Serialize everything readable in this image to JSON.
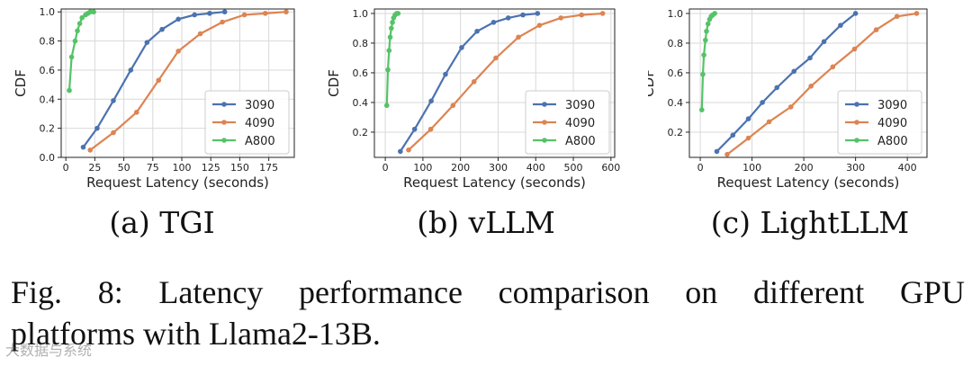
{
  "figure": {
    "caption_line1": "Fig. 8: Latency performance comparison on different GPU",
    "caption_line2": "platforms with Llama2-13B.",
    "watermark": "大数据与系统"
  },
  "colors": {
    "3090": "#4c72b0",
    "4090": "#dd8452",
    "A800": "#55c367"
  },
  "chart_data": [
    {
      "type": "line",
      "subcaption": "(a) TGI",
      "xlabel": "Request Latency (seconds)",
      "ylabel": "CDF",
      "xlim": [
        -4,
        197
      ],
      "ylim": [
        0.0,
        1.02
      ],
      "xticks": [
        0,
        25,
        50,
        75,
        100,
        125,
        150,
        175
      ],
      "yticks": [
        0.0,
        0.2,
        0.4,
        0.6,
        0.8,
        1.0
      ],
      "ytick_labels": [
        "0.0",
        "0.2",
        "0.4",
        "0.6",
        "0.8",
        "1.0"
      ],
      "grid": true,
      "legend": {
        "position": "lower-right",
        "entries": [
          "3090",
          "4090",
          "A800"
        ]
      },
      "series": [
        {
          "name": "3090",
          "x": [
            15,
            27,
            41,
            56,
            70,
            83,
            97,
            111,
            124,
            137
          ],
          "y": [
            0.07,
            0.2,
            0.39,
            0.6,
            0.79,
            0.88,
            0.95,
            0.98,
            0.99,
            1.0
          ]
        },
        {
          "name": "4090",
          "x": [
            21,
            41,
            61,
            80,
            97,
            116,
            135,
            154,
            172,
            190
          ],
          "y": [
            0.05,
            0.17,
            0.31,
            0.53,
            0.73,
            0.85,
            0.93,
            0.98,
            0.99,
            1.0
          ]
        },
        {
          "name": "A800",
          "x": [
            3,
            5,
            8,
            10,
            12,
            14,
            17,
            19,
            21,
            24
          ],
          "y": [
            0.46,
            0.69,
            0.8,
            0.87,
            0.92,
            0.96,
            0.98,
            0.99,
            1.0,
            1.0
          ]
        }
      ]
    },
    {
      "type": "line",
      "subcaption": "(b) vLLM",
      "xlabel": "Request Latency (seconds)",
      "ylabel": "CDF",
      "xlim": [
        -29,
        610
      ],
      "ylim": [
        0.03,
        1.03
      ],
      "xticks": [
        0,
        100,
        200,
        300,
        400,
        500,
        600
      ],
      "yticks": [
        0.2,
        0.4,
        0.6,
        0.8,
        1.0
      ],
      "ytick_labels": [
        "0.2",
        "0.4",
        "0.6",
        "0.8",
        "1.0"
      ],
      "grid": true,
      "legend": {
        "position": "lower-right",
        "entries": [
          "3090",
          "4090",
          "A800"
        ]
      },
      "series": [
        {
          "name": "3090",
          "x": [
            40,
            78,
            122,
            160,
            203,
            244,
            288,
            327,
            366,
            405
          ],
          "y": [
            0.07,
            0.22,
            0.41,
            0.59,
            0.77,
            0.88,
            0.94,
            0.97,
            0.99,
            1.0
          ]
        },
        {
          "name": "4090",
          "x": [
            62,
            121,
            180,
            236,
            294,
            354,
            410,
            467,
            522,
            578
          ],
          "y": [
            0.08,
            0.22,
            0.38,
            0.54,
            0.7,
            0.84,
            0.92,
            0.97,
            0.99,
            1.0
          ]
        },
        {
          "name": "A800",
          "x": [
            4,
            7,
            10,
            13,
            16,
            19,
            22,
            26,
            30,
            34
          ],
          "y": [
            0.38,
            0.62,
            0.75,
            0.84,
            0.9,
            0.94,
            0.97,
            0.99,
            1.0,
            1.0
          ]
        }
      ]
    },
    {
      "type": "line",
      "subcaption": "(c) LightLLM",
      "xlabel": "Request Latency (seconds)",
      "ylabel": "CDF",
      "xlim": [
        -21,
        438
      ],
      "ylim": [
        0.03,
        1.03
      ],
      "xticks": [
        0,
        100,
        200,
        300,
        400
      ],
      "yticks": [
        0.2,
        0.4,
        0.6,
        0.8,
        1.0
      ],
      "ytick_labels": [
        "0.2",
        "0.4",
        "0.6",
        "0.8",
        "1.0"
      ],
      "grid": true,
      "legend": {
        "position": "lower-right",
        "entries": [
          "3090",
          "4090",
          "A800"
        ]
      },
      "series": [
        {
          "name": "3090",
          "x": [
            32,
            63,
            93,
            120,
            148,
            181,
            212,
            239,
            271,
            300
          ],
          "y": [
            0.07,
            0.18,
            0.29,
            0.4,
            0.5,
            0.61,
            0.7,
            0.81,
            0.92,
            1.0
          ]
        },
        {
          "name": "4090",
          "x": [
            52,
            93,
            133,
            175,
            214,
            256,
            298,
            340,
            380,
            418
          ],
          "y": [
            0.05,
            0.16,
            0.27,
            0.37,
            0.51,
            0.64,
            0.76,
            0.89,
            0.98,
            1.0
          ]
        },
        {
          "name": "A800",
          "x": [
            3,
            5,
            7,
            10,
            12,
            15,
            18,
            21,
            24,
            28
          ],
          "y": [
            0.35,
            0.59,
            0.72,
            0.82,
            0.88,
            0.93,
            0.96,
            0.98,
            0.99,
            1.0
          ]
        }
      ]
    }
  ]
}
